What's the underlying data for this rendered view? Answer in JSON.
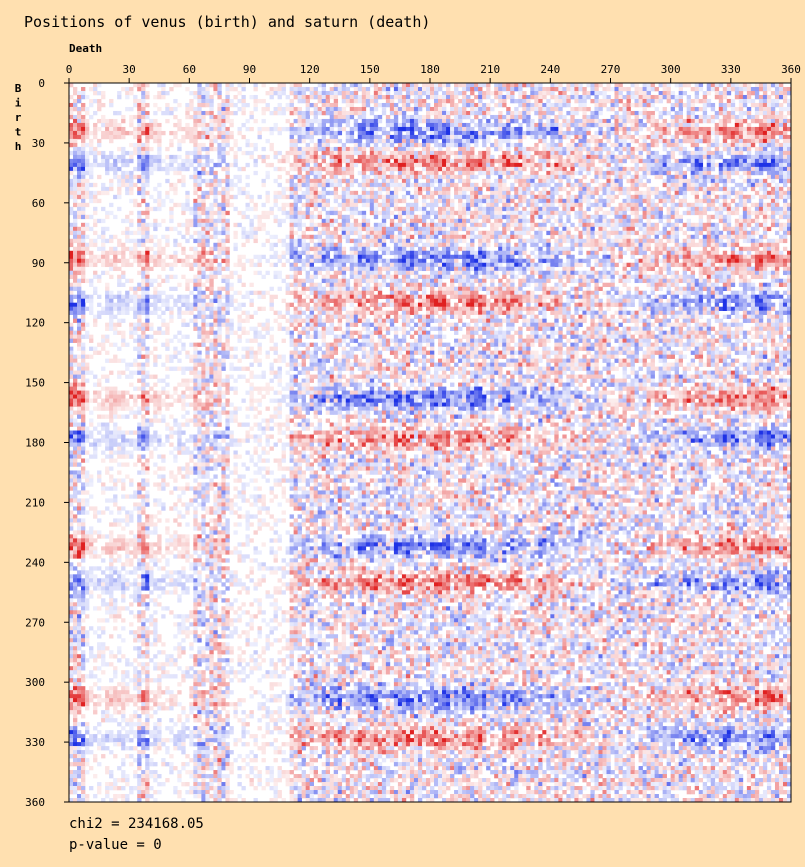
{
  "chart_data": {
    "type": "heatmap",
    "title": "Positions of venus (birth) and saturn (death)",
    "xlabel": "Death",
    "ylabel": "Birth",
    "xlim": [
      0,
      360
    ],
    "ylim": [
      0,
      360
    ],
    "x_ticks": [
      0,
      30,
      60,
      90,
      120,
      150,
      180,
      210,
      240,
      270,
      300,
      330,
      360
    ],
    "y_ticks": [
      0,
      30,
      60,
      90,
      120,
      150,
      180,
      210,
      240,
      270,
      300,
      330,
      360
    ],
    "bin_size_degrees": 2,
    "color_scale": {
      "positive": "#E02020",
      "negative": "#1E32E6",
      "neutral": "#FFFFFF"
    },
    "structure": {
      "row_bands": [
        {
          "center": 24,
          "width": 5,
          "strength": 0.7,
          "x_phase": 0
        },
        {
          "center": 40,
          "width": 5,
          "strength": 0.7,
          "x_phase": 180
        },
        {
          "center": 88,
          "width": 5,
          "strength": 0.75,
          "x_phase": 0
        },
        {
          "center": 110,
          "width": 5,
          "strength": 0.7,
          "x_phase": 180
        },
        {
          "center": 158,
          "width": 5,
          "strength": 0.75,
          "x_phase": 0
        },
        {
          "center": 178,
          "width": 5,
          "strength": 0.7,
          "x_phase": 180
        },
        {
          "center": 232,
          "width": 5,
          "strength": 0.75,
          "x_phase": 0
        },
        {
          "center": 250,
          "width": 5,
          "strength": 0.7,
          "x_phase": 180
        },
        {
          "center": 308,
          "width": 5,
          "strength": 0.75,
          "x_phase": 0
        },
        {
          "center": 328,
          "width": 5,
          "strength": 0.7,
          "x_phase": 180
        }
      ],
      "column_stripe_period": 9,
      "pale_columns": [
        [
          4,
          16
        ],
        [
          20,
          30
        ],
        [
          40,
          54
        ]
      ],
      "noise_level": 0.45
    },
    "stats": {
      "chi2": "chi2 = 234168.05",
      "p_value": "p-value = 0"
    }
  }
}
